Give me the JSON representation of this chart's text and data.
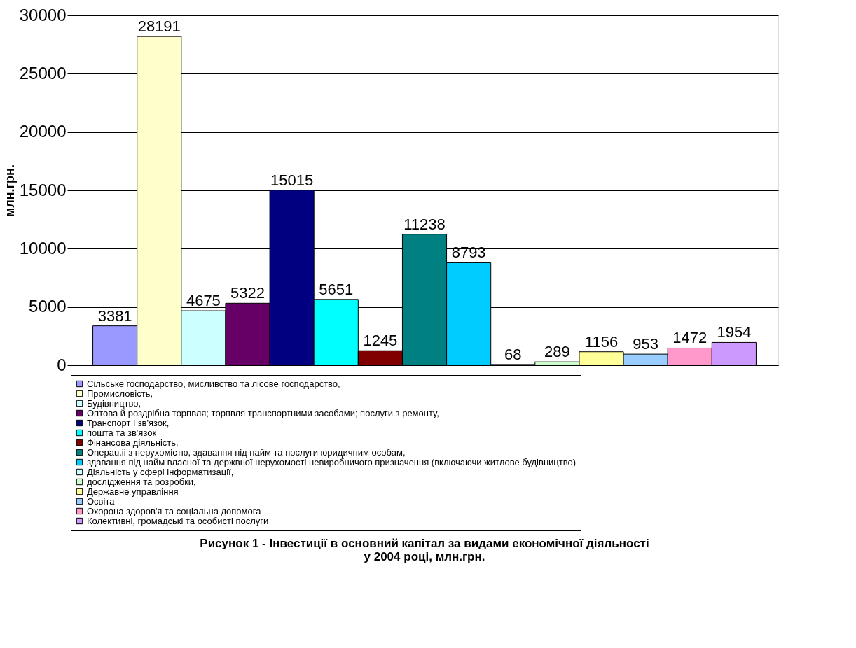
{
  "chart_data": {
    "type": "bar",
    "title": "Рисунок 1 - Інвестиції в основний капітал за видами економічної діяльності\nу 2004 році, млн.грн.",
    "ylabel": "млн.грн.",
    "categories": [
      null
    ],
    "ylim": [
      0,
      30000
    ],
    "yticks": [
      0,
      5000,
      10000,
      15000,
      20000,
      25000,
      30000
    ],
    "grid": "y",
    "legend": "bottom",
    "data_labels": true,
    "series": [
      {
        "name": "Сільське господарство, мисливство та лісове господарство,",
        "color": "#9999ff",
        "values": [
          3381
        ]
      },
      {
        "name": "Промисловість,",
        "color": "#ffffcc",
        "values": [
          28191
        ]
      },
      {
        "name": "Будівництво,",
        "color": "#ccffff",
        "values": [
          4675
        ]
      },
      {
        "name": "Оптова й роздрібна торпвля; торпвля транспортними засобами; послуги з ремонту,",
        "color": "#660066",
        "values": [
          5322
        ]
      },
      {
        "name": "Транспорт і зв'язок,",
        "color": "#000080",
        "values": [
          15015
        ]
      },
      {
        "name": "пошта та зв'язок",
        "color": "#00ffff",
        "values": [
          5651
        ]
      },
      {
        "name": "Фінансова діяльність,",
        "color": "#800000",
        "values": [
          1245
        ]
      },
      {
        "name": "Onepau.ii з нерухомістю, здавання під найм та послуги юридичним особам,",
        "color": "#008080",
        "values": [
          11238
        ]
      },
      {
        "name": "здавання під найм власної та держвної нерухомості невиробничого призначення (включаючи житлове будівництво)",
        "color": "#00ccff",
        "values": [
          8793
        ]
      },
      {
        "name": "Діяльність у сфері інформатизації,",
        "color": "#cdfffe",
        "values": [
          68
        ]
      },
      {
        "name": "дослідження та розробки,",
        "color": "#ccffcc",
        "values": [
          289
        ]
      },
      {
        "name": "Державне управління",
        "color": "#ffff99",
        "values": [
          1156
        ]
      },
      {
        "name": "Освіта",
        "color": "#99ccff",
        "values": [
          953
        ]
      },
      {
        "name": "Охорона здоров'я та соціальна допомога",
        "color": "#ff99cc",
        "values": [
          1472
        ]
      },
      {
        "name": "Колективні, громадські та особисті послуги",
        "color": "#cc99ff",
        "values": [
          1954
        ]
      }
    ]
  }
}
